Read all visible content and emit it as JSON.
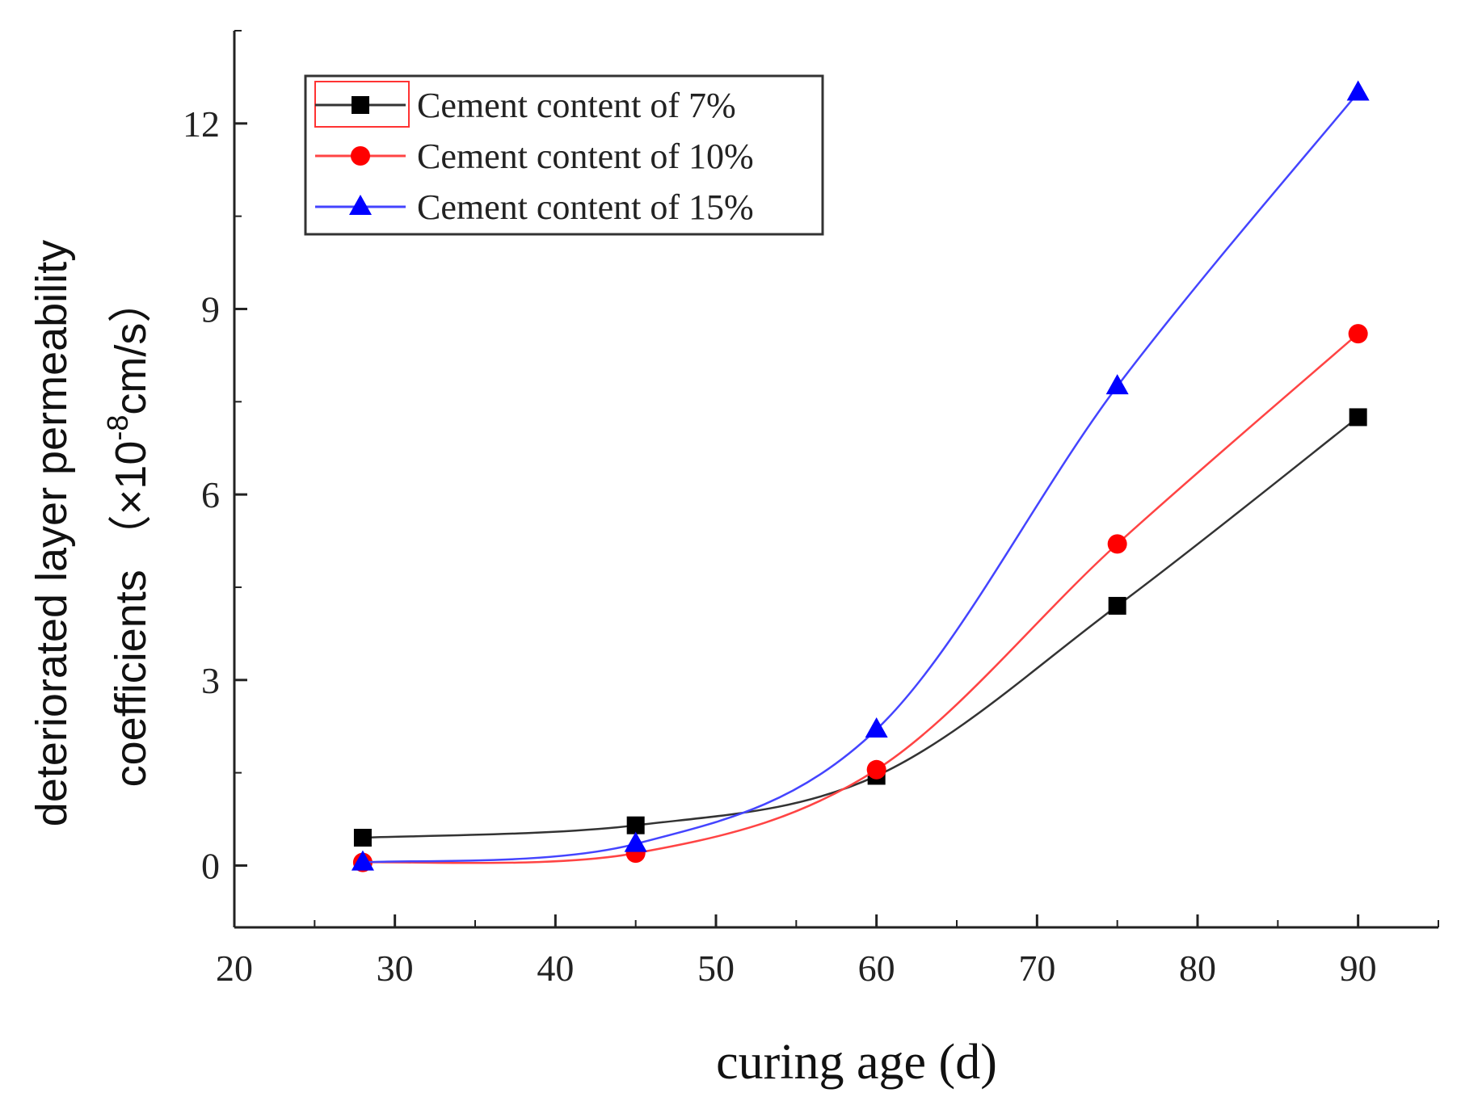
{
  "chart_data": {
    "type": "line",
    "title": "",
    "xlabel": "curing age (d)",
    "ylabel_line1": "deteriorated layer permeability",
    "ylabel_line2_prefix": "coefficients",
    "ylabel_unit_open": "（×10",
    "ylabel_unit_exponent": "-8",
    "ylabel_unit_close": "cm/s）",
    "xlim": [
      20,
      95
    ],
    "ylim": [
      -1,
      13.5
    ],
    "xticks": [
      20,
      30,
      40,
      50,
      60,
      70,
      80,
      90
    ],
    "xtick_labels": [
      "20",
      "30",
      "40",
      "50",
      "60",
      "70",
      "80",
      "90"
    ],
    "yticks": [
      0,
      3,
      6,
      9,
      12
    ],
    "ytick_labels": [
      "0",
      "3",
      "6",
      "9",
      "12"
    ],
    "grid": false,
    "legend_position": "top-left",
    "x": [
      28,
      45,
      60,
      75,
      90
    ],
    "series": [
      {
        "name": "Cement content of 7%",
        "color": "#000000",
        "line_color": "#333333",
        "marker": "square",
        "values": [
          0.45,
          0.65,
          1.45,
          4.2,
          7.25
        ]
      },
      {
        "name": "Cement content of 10%",
        "color": "#ff0000",
        "line_color": "#ff4444",
        "marker": "circle",
        "values": [
          0.05,
          0.2,
          1.55,
          5.2,
          8.6
        ]
      },
      {
        "name": "Cement content of 15%",
        "color": "#0000ff",
        "line_color": "#4444ff",
        "marker": "triangle",
        "values": [
          0.05,
          0.35,
          2.2,
          7.75,
          12.5
        ]
      }
    ]
  }
}
